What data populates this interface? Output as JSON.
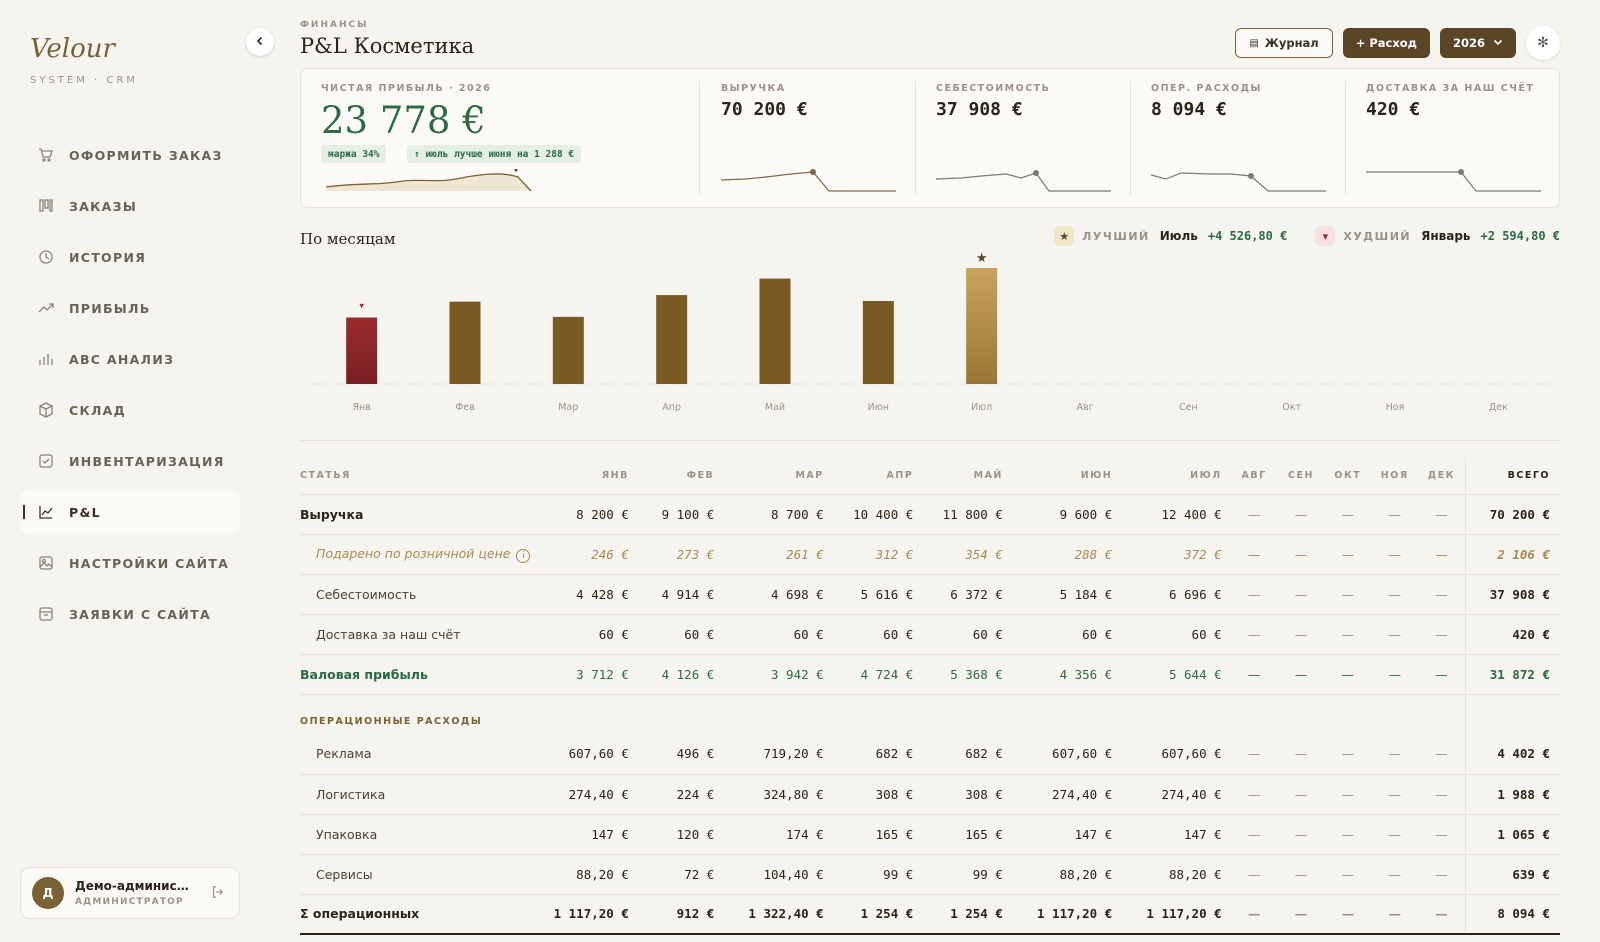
{
  "brand": {
    "name": "Velour",
    "sub": "SYSTEM · CRM"
  },
  "nav": [
    {
      "label": "ОФОРМИТЬ ЗАКАЗ",
      "icon": "cart-icon"
    },
    {
      "label": "ЗАКАЗЫ",
      "icon": "columns-icon"
    },
    {
      "label": "ИСТОРИЯ",
      "icon": "history-icon"
    },
    {
      "label": "ПРИБЫЛЬ",
      "icon": "trend-icon"
    },
    {
      "label": "ABC АНАЛИЗ",
      "icon": "bar-chart-icon"
    },
    {
      "label": "СКЛАД",
      "icon": "box-icon"
    },
    {
      "label": "ИНВЕНТАРИЗАЦИЯ",
      "icon": "checklist-icon"
    },
    {
      "label": "P&L",
      "icon": "line-chart-icon",
      "active": true
    },
    {
      "label": "НАСТРОЙКИ САЙТА",
      "icon": "image-icon"
    },
    {
      "label": "ЗАЯВКИ С САЙТА",
      "icon": "inbox-icon"
    }
  ],
  "user": {
    "initial": "Д",
    "name": "Демо-администра...",
    "role": "АДМИНИСТРАТОР"
  },
  "header": {
    "kicker": "ФИНАНСЫ",
    "title": "P&L Косметика",
    "journal": "Журнал",
    "expense": "+ Расход",
    "year": "2026"
  },
  "kpis": {
    "net": {
      "label": "ЧИСТАЯ ПРИБЫЛЬ · 2026",
      "value": "23 778 €",
      "margin": "маржа 34%",
      "delta": "↑ июль лучше июня на 1 288 €"
    },
    "items": [
      {
        "label": "ВЫРУЧКА",
        "value": "70 200 €"
      },
      {
        "label": "СЕБЕСТОИМОСТЬ",
        "value": "37 908 €"
      },
      {
        "label": "ОПЕР. РАСХОДЫ",
        "value": "8 094 €"
      },
      {
        "label": "ДОСТАВКА ЗА НАШ СЧЁТ",
        "value": "420 €"
      }
    ]
  },
  "monthly": {
    "title": "По месяцам",
    "best": {
      "label": "ЛУЧШИЙ",
      "month": "Июль",
      "value": "+4 526,80 €"
    },
    "worst": {
      "label": "ХУДШИЙ",
      "month": "Январь",
      "value": "+2 594,80 €"
    }
  },
  "colors": {
    "accent": "#5a4526",
    "green": "#2d6a45",
    "bar": "#7a5a22",
    "bar_best": "#c9a45e",
    "bar_worst": "#7a1f24"
  },
  "chart_data": {
    "type": "bar",
    "categories": [
      "Янв",
      "Фев",
      "Мар",
      "Апр",
      "Май",
      "Июн",
      "Июл",
      "Авг",
      "Сен",
      "Окт",
      "Ноя",
      "Дек"
    ],
    "values": [
      2594.8,
      3214,
      2619.6,
      3470,
      4114,
      3238.8,
      4526.8,
      null,
      null,
      null,
      null,
      null
    ],
    "best_index": 6,
    "worst_index": 0
  },
  "table": {
    "headers": [
      "СТАТЬЯ",
      "ЯНВ",
      "ФЕВ",
      "МАР",
      "АПР",
      "МАЙ",
      "ИЮН",
      "ИЮЛ",
      "АВГ",
      "СЕН",
      "ОКТ",
      "НОЯ",
      "ДЕК",
      "ВСЕГО"
    ],
    "rows": [
      {
        "type": "bold",
        "label": "Выручка",
        "cells": [
          "8 200 €",
          "9 100 €",
          "8 700 €",
          "10 400 €",
          "11 800 €",
          "9 600 €",
          "12 400 €",
          "—",
          "—",
          "—",
          "—",
          "—"
        ],
        "total": "70 200 €"
      },
      {
        "type": "gift",
        "label": "Подарено по розничной цене",
        "cells": [
          "246 €",
          "273 €",
          "261 €",
          "312 €",
          "354 €",
          "288 €",
          "372 €",
          "—",
          "—",
          "—",
          "—",
          "—"
        ],
        "total": "2 106 €"
      },
      {
        "type": "sub",
        "label": "Себестоимость",
        "cells": [
          "4 428 €",
          "4 914 €",
          "4 698 €",
          "5 616 €",
          "6 372 €",
          "5 184 €",
          "6 696 €",
          "—",
          "—",
          "—",
          "—",
          "—"
        ],
        "total": "37 908 €"
      },
      {
        "type": "sub",
        "label": "Доставка за наш счёт",
        "cells": [
          "60 €",
          "60 €",
          "60 €",
          "60 €",
          "60 €",
          "60 €",
          "60 €",
          "—",
          "—",
          "—",
          "—",
          "—"
        ],
        "total": "420 €"
      },
      {
        "type": "green",
        "label": "Валовая прибыль",
        "cells": [
          "3 712 €",
          "4 126 €",
          "3 942 €",
          "4 724 €",
          "5 368 €",
          "4 356 €",
          "5 644 €",
          "—",
          "—",
          "—",
          "—",
          "—"
        ],
        "total": "31 872 €"
      },
      {
        "type": "section",
        "label": "ОПЕРАЦИОННЫЕ РАСХОДЫ"
      },
      {
        "type": "sub",
        "label": "Реклама",
        "cells": [
          "607,60 €",
          "496 €",
          "719,20 €",
          "682 €",
          "682 €",
          "607,60 €",
          "607,60 €",
          "—",
          "—",
          "—",
          "—",
          "—"
        ],
        "total": "4 402 €"
      },
      {
        "type": "sub",
        "label": "Логистика",
        "cells": [
          "274,40 €",
          "224 €",
          "324,80 €",
          "308 €",
          "308 €",
          "274,40 €",
          "274,40 €",
          "—",
          "—",
          "—",
          "—",
          "—"
        ],
        "total": "1 988 €"
      },
      {
        "type": "sub",
        "label": "Упаковка",
        "cells": [
          "147 €",
          "120 €",
          "174 €",
          "165 €",
          "165 €",
          "147 €",
          "147 €",
          "—",
          "—",
          "—",
          "—",
          "—"
        ],
        "total": "1 065 €"
      },
      {
        "type": "sub",
        "label": "Сервисы",
        "cells": [
          "88,20 €",
          "72 €",
          "104,40 €",
          "99 €",
          "99 €",
          "88,20 €",
          "88,20 €",
          "—",
          "—",
          "—",
          "—",
          "—"
        ],
        "total": "639 €"
      },
      {
        "type": "sum",
        "label": "Σ операционных",
        "cells": [
          "1 117,20 €",
          "912 €",
          "1 322,40 €",
          "1 254 €",
          "1 254 €",
          "1 117,20 €",
          "1 117,20 €",
          "—",
          "—",
          "—",
          "—",
          "—"
        ],
        "total": "8 094 €"
      }
    ]
  }
}
